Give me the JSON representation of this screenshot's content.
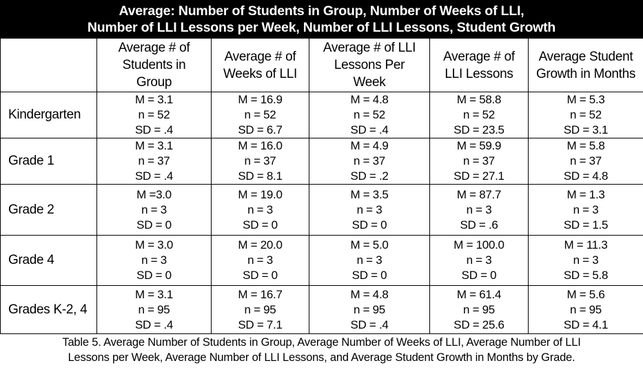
{
  "title": {
    "line1": "Average: Number of Students in Group, Number of Weeks of LLI,",
    "line2": "Number of LLI Lessons per Week, Number of LLI Lessons, Student Growth"
  },
  "headers": [
    [
      "Average # of",
      "Students in",
      "Group"
    ],
    [
      "Average # of",
      "Weeks of LLI"
    ],
    [
      "Average # of LLI",
      "Lessons Per",
      "Week"
    ],
    [
      "Average # of",
      "LLI Lessons"
    ],
    [
      "Average Student",
      "Growth in Months"
    ]
  ],
  "rows": [
    {
      "label": "Kindergarten",
      "cells": [
        [
          "M = 3.1",
          "n = 52",
          "SD = .4"
        ],
        [
          "M = 16.9",
          "n = 52",
          "SD = 6.7"
        ],
        [
          "M = 4.8",
          "n = 52",
          "SD = .4"
        ],
        [
          "M = 58.8",
          "n = 52",
          "SD = 23.5"
        ],
        [
          "M = 5.3",
          "n = 52",
          "SD = 3.1"
        ]
      ]
    },
    {
      "label": "Grade 1",
      "cells": [
        [
          "M = 3.1",
          "n = 37",
          "SD = .4"
        ],
        [
          "M = 16.0",
          "n = 37",
          "SD = 8.1"
        ],
        [
          "M = 4.9",
          "n = 37",
          "SD = .2"
        ],
        [
          "M = 59.9",
          "n = 37",
          "SD = 27.1"
        ],
        [
          "M = 5.8",
          "n = 37",
          "SD = 4.8"
        ]
      ]
    },
    {
      "label": "Grade 2",
      "cells": [
        [
          "M =3.0",
          "n = 3",
          "SD = 0"
        ],
        [
          "M = 19.0",
          "n = 3",
          "SD = 0"
        ],
        [
          "M = 3.5",
          "n = 3",
          "SD = 0"
        ],
        [
          "M = 87.7",
          "n = 3",
          "SD = .6"
        ],
        [
          "M = 1.3",
          "n = 3",
          "SD = 1.5"
        ]
      ]
    },
    {
      "label": "Grade 4",
      "cells": [
        [
          "M = 3.0",
          "n = 3",
          "SD = 0"
        ],
        [
          "M = 20.0",
          "n = 3",
          "SD = 0"
        ],
        [
          "M = 5.0",
          "n = 3",
          "SD = 0"
        ],
        [
          "M = 100.0",
          "n = 3",
          "SD = 0"
        ],
        [
          "M = 11.3",
          "n = 3",
          "SD = 5.8"
        ]
      ]
    },
    {
      "label": "Grades K-2, 4",
      "cells": [
        [
          "M = 3.1",
          "n = 95",
          "SD = .4"
        ],
        [
          "M = 16.7",
          "n = 95",
          "SD = 7.1"
        ],
        [
          "M = 4.8",
          "n = 95",
          "SD = .4"
        ],
        [
          "M = 61.4",
          "n = 95",
          "SD = 25.6"
        ],
        [
          "M = 5.6",
          "n = 95",
          "SD = 4.1"
        ]
      ]
    }
  ],
  "caption": {
    "line1": "Table 5. Average Number of Students in Group, Average Number of Weeks of LLI, Average Number of LLI",
    "line2": "Lessons per Week, Average Number of LLI Lessons, and Average Student Growth in Months by Grade."
  }
}
